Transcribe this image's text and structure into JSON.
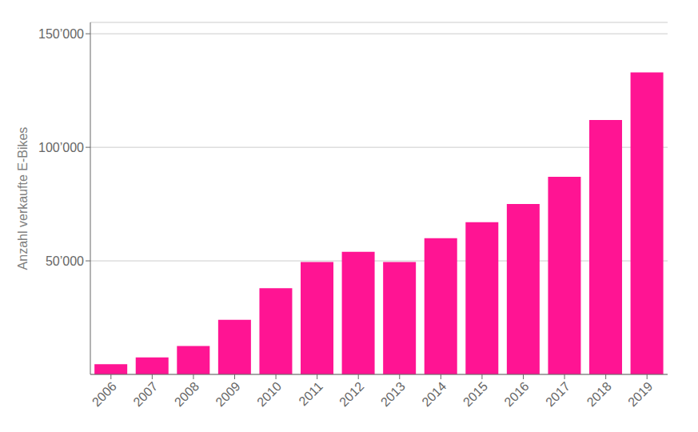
{
  "chart_data": {
    "type": "bar",
    "categories": [
      "2006",
      "2007",
      "2008",
      "2009",
      "2010",
      "2011",
      "2012",
      "2013",
      "2014",
      "2015",
      "2016",
      "2017",
      "2018",
      "2019"
    ],
    "values": [
      4500,
      7500,
      12500,
      24000,
      38000,
      49500,
      54000,
      49500,
      60000,
      67000,
      75000,
      87000,
      112000,
      133000
    ],
    "color": "#FF1493",
    "ylabel": "Anzahl verkaufte E-Bikes",
    "ylim": [
      0,
      155000
    ],
    "yticks": [
      {
        "value": 50000,
        "label": "50’000"
      },
      {
        "value": 100000,
        "label": "100’000"
      },
      {
        "value": 150000,
        "label": "150’000"
      }
    ],
    "grid": true
  }
}
